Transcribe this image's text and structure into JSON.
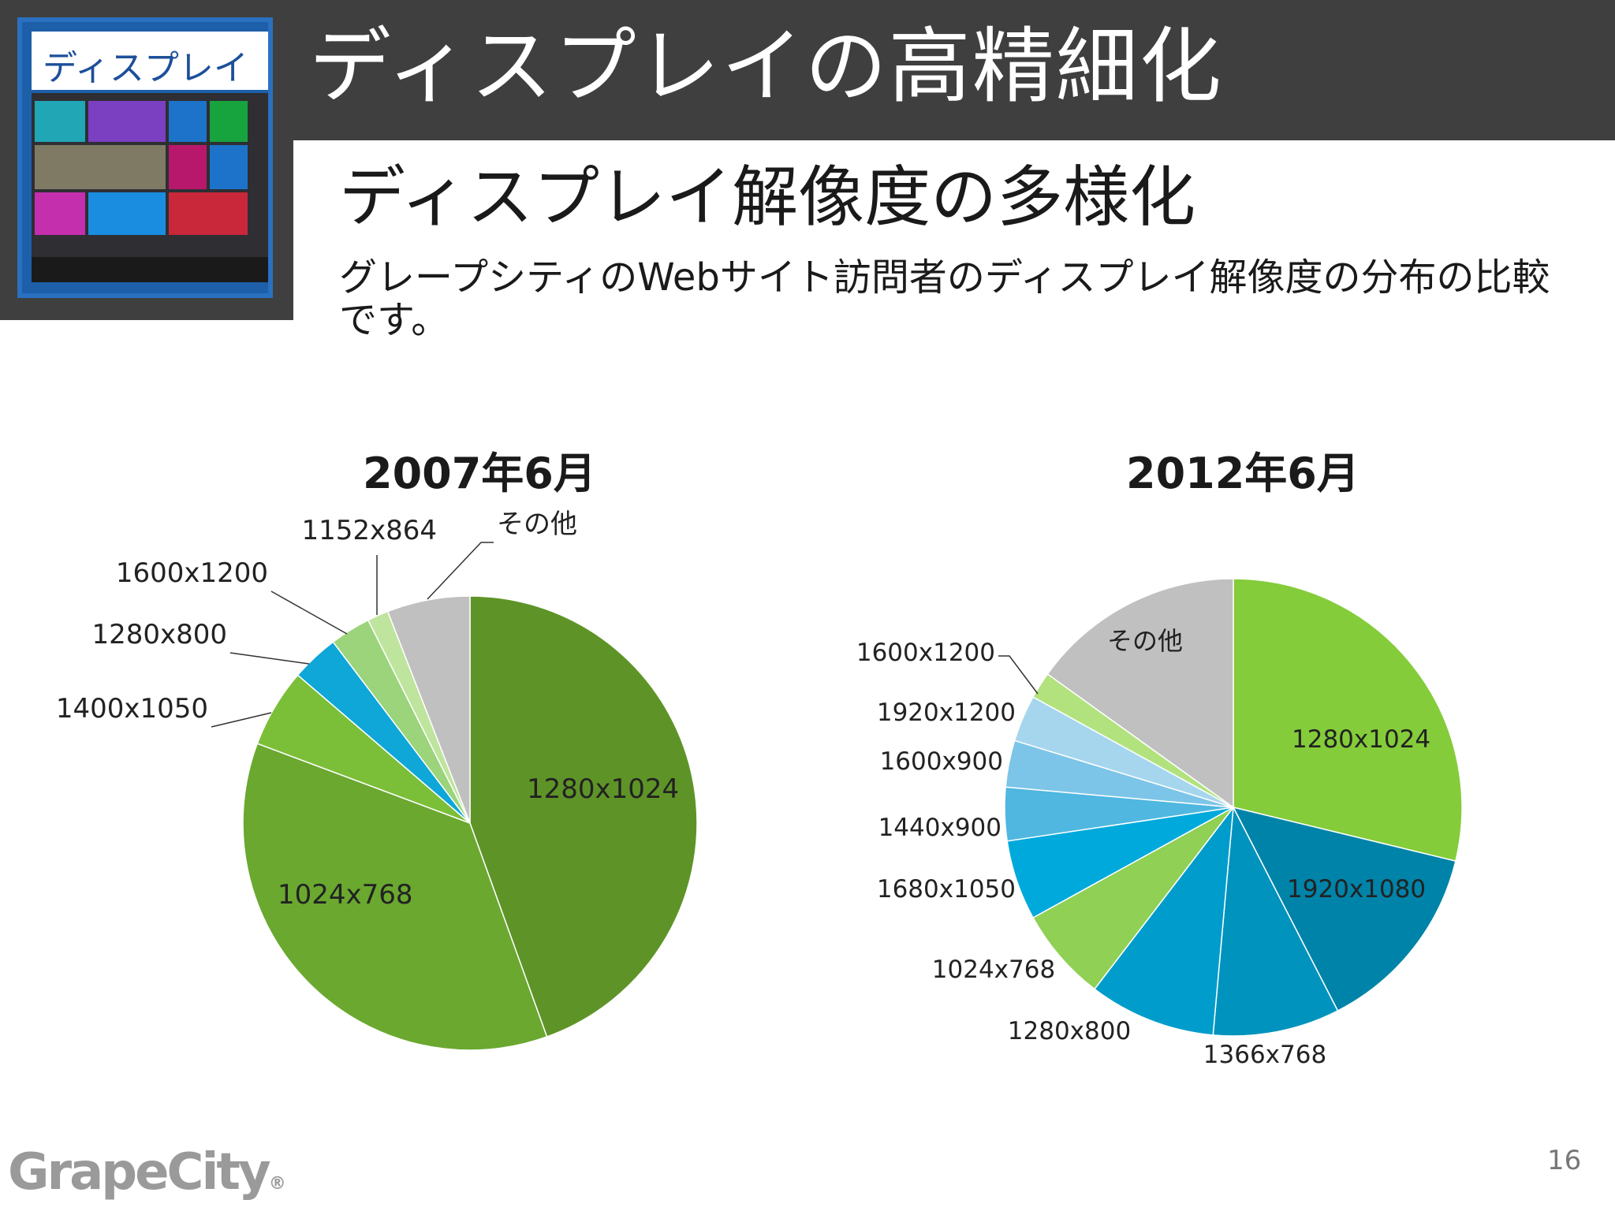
{
  "slide": {
    "title": "ディスプレイの高精細化",
    "thumbnail_label": "ディスプレイ",
    "heading": "ディスプレイ解像度の多様化",
    "description": "グレープシティのWebサイト訪問者のディスプレイ解像度の分布の比較です。",
    "page_number": "16"
  },
  "logo": {
    "text": "GrapeCity",
    "mark": "®"
  },
  "chart_data": [
    {
      "type": "pie",
      "title": "2007年6月",
      "slices": [
        {
          "label": "1280x1024",
          "value": 44.5,
          "color": "#5e9427"
        },
        {
          "label": "1024x768",
          "value": 36.2,
          "color": "#6aa82f"
        },
        {
          "label": "1400x1050",
          "value": 5.6,
          "color": "#7bbf38"
        },
        {
          "label": "1280x800",
          "value": 3.4,
          "color": "#0fa6d8"
        },
        {
          "label": "1600x1200",
          "value": 2.9,
          "color": "#9bd47a"
        },
        {
          "label": "1152x864",
          "value": 1.5,
          "color": "#bfe49d"
        },
        {
          "label": "その他",
          "value": 5.9,
          "color": "#c0c0c0"
        }
      ]
    },
    {
      "type": "pie",
      "title": "2012年6月",
      "slices": [
        {
          "label": "1280x1024",
          "value": 30.5,
          "color": "#84cc3a"
        },
        {
          "label": "1920x1080",
          "value": 14.5,
          "color": "#0083a8"
        },
        {
          "label": "1366x768",
          "value": 9.5,
          "color": "#0093bd"
        },
        {
          "label": "1280x800",
          "value": 9.5,
          "color": "#009ccb"
        },
        {
          "label": "1024x768",
          "value": 7.0,
          "color": "#8fd055"
        },
        {
          "label": "1680x1050",
          "value": 6.0,
          "color": "#00a9dc"
        },
        {
          "label": "1440x900",
          "value": 4.0,
          "color": "#4fb7e0"
        },
        {
          "label": "1600x900",
          "value": 3.5,
          "color": "#7cc5e8"
        },
        {
          "label": "1920x1200",
          "value": 3.5,
          "color": "#a6d6ee"
        },
        {
          "label": "1600x1200",
          "value": 2.0,
          "color": "#b2e27e"
        },
        {
          "label": "その他",
          "value": 16.0,
          "color": "#c0c0c0"
        }
      ]
    }
  ]
}
